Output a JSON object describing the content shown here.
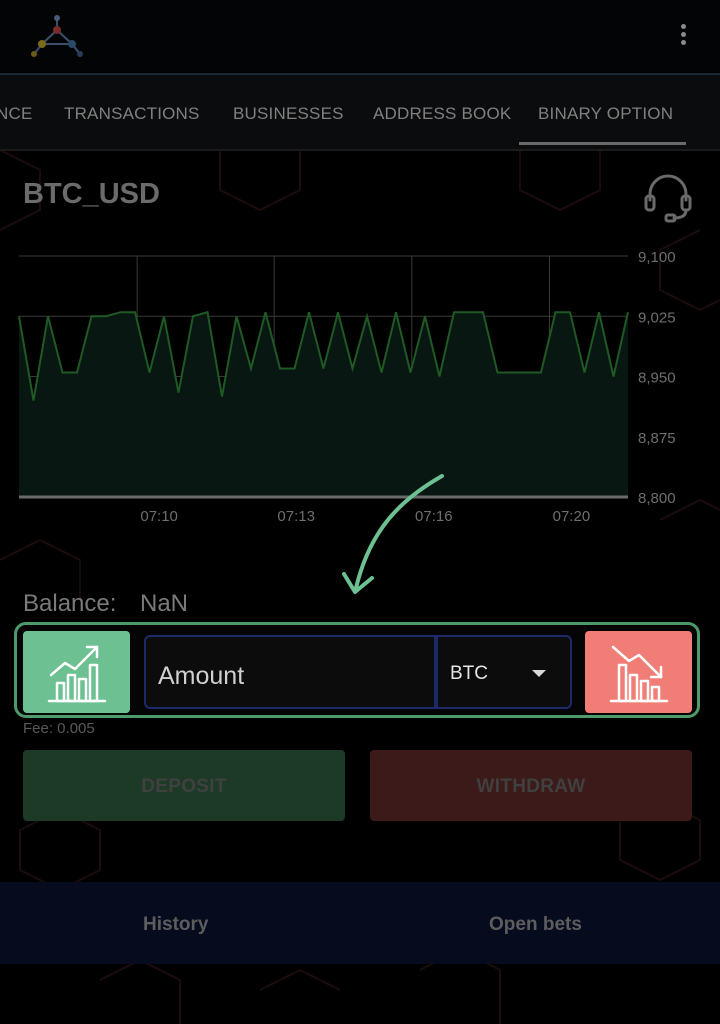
{
  "tabs": [
    "NCE",
    "TRANSACTIONS",
    "BUSINESSES",
    "ADDRESS BOOK",
    "BINARY OPTION"
  ],
  "active_tab": "BINARY OPTION",
  "pair": "BTC_USD",
  "chart_data": {
    "type": "area",
    "x_tick_labels": [
      "07:10",
      "07:13",
      "07:16",
      "07:20"
    ],
    "y_tick_labels": [
      "9,100",
      "9,025",
      "8,950",
      "8,875",
      "8,800"
    ],
    "ylim": [
      8800,
      9100
    ],
    "series": [
      {
        "values": [
          9025,
          8920,
          9025,
          8955,
          8955,
          9025,
          9025,
          9030,
          9030,
          8955,
          9025,
          8930,
          9025,
          9030,
          8925,
          9025,
          8960,
          9030,
          8960,
          8960,
          9030,
          8960,
          9030,
          8960,
          9025,
          8955,
          9030,
          8955,
          9025,
          8950,
          9030,
          9030,
          9030,
          8955,
          8955,
          8955,
          8955,
          9030,
          9030,
          8955,
          9030,
          8950,
          9030
        ]
      }
    ],
    "grid": true,
    "line_color": "#1f5a24",
    "fill_color": "#081712"
  },
  "balance": {
    "label": "Balance:",
    "value": "NaN"
  },
  "amount": {
    "placeholder": "Amount"
  },
  "currency": {
    "selected": "BTC"
  },
  "fee": "Fee: 0.005",
  "buttons": {
    "deposit": "DEPOSIT",
    "withdraw": "WITHDRAW"
  },
  "bottom_nav": {
    "history": "History",
    "open_bets": "Open bets"
  },
  "colors": {
    "up": "#6cc091",
    "down": "#f07d76",
    "highlight": "#4f9a6c",
    "deposit_bg": "#1d3a26",
    "withdraw_bg": "#3c1a19"
  },
  "icons": {
    "logo": "network-cube-logo",
    "menu": "more-vert-icon",
    "support": "headset-icon",
    "up": "bar-chart-up-icon",
    "down": "bar-chart-down-icon",
    "dropdown": "caret-down-icon",
    "annotation": "curved-arrow-icon"
  }
}
